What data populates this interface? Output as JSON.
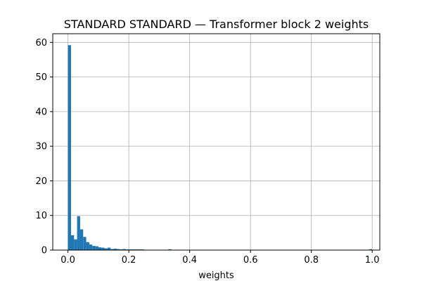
{
  "chart_data": {
    "type": "bar",
    "title": "STANDARD STANDARD — Transformer block 2 weights",
    "xlabel": "weights",
    "ylabel": "",
    "xlim": [
      -0.05,
      1.025
    ],
    "ylim": [
      0,
      62.5
    ],
    "grid": true,
    "bar_color": "#1f77b4",
    "bin_width": 0.01,
    "xticks": [
      0.0,
      0.2,
      0.4,
      0.6,
      0.8,
      1.0
    ],
    "xtick_labels": [
      "0.0",
      "0.2",
      "0.4",
      "0.6",
      "0.8",
      "1.0"
    ],
    "yticks": [
      0,
      10,
      20,
      30,
      40,
      50,
      60
    ],
    "ytick_labels": [
      "0",
      "10",
      "20",
      "30",
      "40",
      "50",
      "60"
    ],
    "bins": [
      {
        "x": 0.0,
        "y": 59.2
      },
      {
        "x": 0.01,
        "y": 4.3
      },
      {
        "x": 0.02,
        "y": 3.1
      },
      {
        "x": 0.03,
        "y": 9.8
      },
      {
        "x": 0.04,
        "y": 6.0
      },
      {
        "x": 0.05,
        "y": 3.8
      },
      {
        "x": 0.06,
        "y": 2.3
      },
      {
        "x": 0.07,
        "y": 1.6
      },
      {
        "x": 0.08,
        "y": 1.2
      },
      {
        "x": 0.09,
        "y": 1.1
      },
      {
        "x": 0.1,
        "y": 0.8
      },
      {
        "x": 0.11,
        "y": 0.7
      },
      {
        "x": 0.12,
        "y": 0.5
      },
      {
        "x": 0.13,
        "y": 0.7
      },
      {
        "x": 0.14,
        "y": 0.3
      },
      {
        "x": 0.15,
        "y": 0.4
      },
      {
        "x": 0.16,
        "y": 0.3
      },
      {
        "x": 0.17,
        "y": 0.2
      },
      {
        "x": 0.18,
        "y": 0.3
      },
      {
        "x": 0.19,
        "y": 0.2
      },
      {
        "x": 0.2,
        "y": 0.2
      },
      {
        "x": 0.21,
        "y": 0.2
      },
      {
        "x": 0.22,
        "y": 0.2
      },
      {
        "x": 0.23,
        "y": 0.2
      },
      {
        "x": 0.24,
        "y": 0.2
      },
      {
        "x": 0.25,
        "y": 0.1
      },
      {
        "x": 0.33,
        "y": 0.25
      },
      {
        "x": 0.99,
        "y": 0.25
      }
    ]
  }
}
